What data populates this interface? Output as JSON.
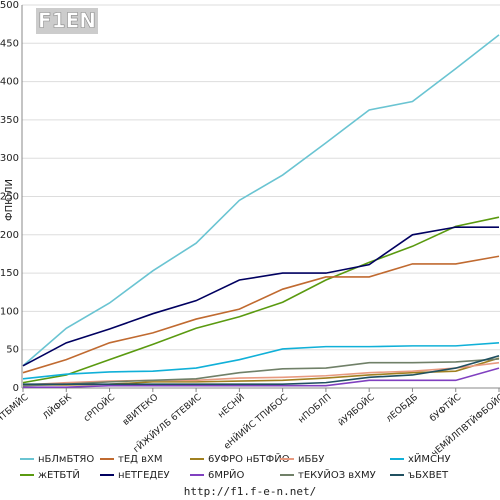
{
  "chart_data": {
    "type": "line",
    "logo_text": "F1EN",
    "ylabel": "ФПЮЛИ",
    "footer": "http://f1.f-e-n.net/",
    "categories": [
      "ЖЕЧТБМЙС",
      "ЛЙФБК",
      "сРПОЙС",
      "вВИТЕКО",
      "гЙЖЙУЛБ 6ТЕВИС",
      "нЕСНЙ",
      "еНЙИЙС ТПИБОС",
      "нПОБЛП",
      "йУЯБОЙС",
      "лЕОБДБ",
      "бУФТЙС",
      "чЕМЙЛПВТЙФБОЙС"
    ],
    "ylim": [
      0,
      500
    ],
    "yticks": [
      0,
      50,
      100,
      150,
      200,
      250,
      300,
      350,
      400,
      450,
      500
    ],
    "grid": true,
    "series": [
      {
        "name": "нБЛмБТЯО",
        "color": "#6ac4d2",
        "values": [
          29,
          78,
          111,
          153,
          189,
          245,
          278,
          320,
          363,
          374,
          417,
          461
        ]
      },
      {
        "name": "жЕТБТЙ",
        "color": "#5a9a10",
        "values": [
          7,
          17,
          37,
          57,
          78,
          93,
          112,
          141,
          164,
          185,
          211,
          223
        ]
      },
      {
        "name": "тЕД вХМ",
        "color": "#c06a30",
        "values": [
          20,
          37,
          59,
          72,
          90,
          103,
          129,
          145,
          145,
          162,
          162,
          172
        ]
      },
      {
        "name": "нЕТГЕДЕУ",
        "color": "#000060",
        "values": [
          29,
          59,
          77,
          97,
          114,
          141,
          150,
          150,
          161,
          200,
          210,
          210
        ]
      },
      {
        "name": "6УФРО нБТФЙО",
        "color": "#a08020",
        "values": [
          4,
          4,
          5,
          8,
          8,
          9,
          10,
          13,
          17,
          20,
          22,
          39
        ]
      },
      {
        "name": "6МРЙО",
        "color": "#8040c0",
        "values": [
          1,
          1,
          3,
          3,
          3,
          3,
          3,
          3,
          10,
          10,
          10,
          26
        ]
      },
      {
        "name": "иББУ",
        "color": "#e89a80",
        "values": [
          4,
          7,
          9,
          10,
          10,
          13,
          14,
          16,
          20,
          22,
          26,
          33
        ]
      },
      {
        "name": "тЕКУЙОЗ вХМУ",
        "color": "#708068",
        "values": [
          3,
          5,
          8,
          10,
          12,
          20,
          25,
          26,
          33,
          33,
          34,
          38
        ]
      },
      {
        "name": "хЙМСНУ",
        "color": "#10b0d8",
        "values": [
          12,
          18,
          21,
          22,
          26,
          37,
          51,
          54,
          54,
          55,
          55,
          59
        ]
      },
      {
        "name": "ъБХВЕТ",
        "color": "#205060",
        "values": [
          5,
          5,
          5,
          5,
          5,
          5,
          5,
          7,
          14,
          17,
          26,
          42
        ]
      }
    ]
  }
}
